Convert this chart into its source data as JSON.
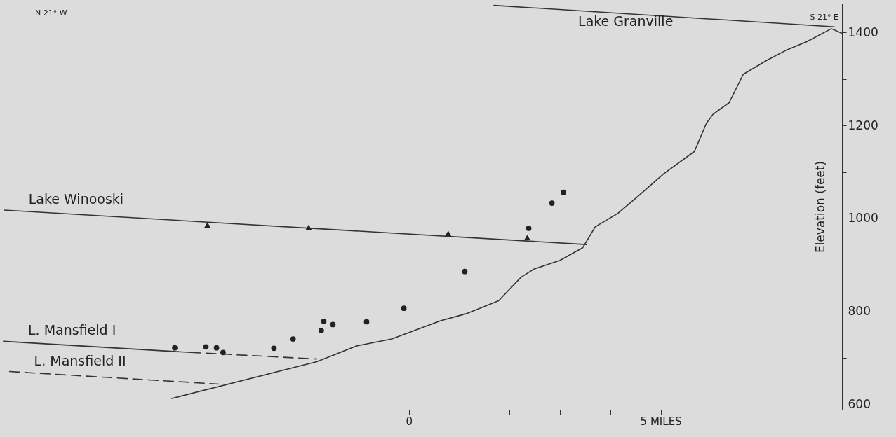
{
  "chart_data": {
    "type": "line",
    "ylabel": "Elevation (feet)",
    "xlim": [
      -8.05,
      8.6
    ],
    "ylim": [
      589,
      1462
    ],
    "xticks": [
      0,
      {
        "value": 1,
        "label": null
      },
      {
        "value": 2,
        "label": null
      },
      {
        "value": 3,
        "label": null
      },
      {
        "value": 4,
        "label": null
      },
      {
        "value": 5,
        "label": "5 MILES"
      }
    ],
    "yticks": [
      600,
      {
        "value": 700,
        "label": null
      },
      800,
      {
        "value": 900,
        "label": null
      },
      1000,
      {
        "value": 1100,
        "label": null
      },
      1200,
      {
        "value": 1300,
        "label": null
      },
      1400
    ],
    "annotations": [
      "N 21° W",
      "S 21° E"
    ],
    "legend": false,
    "series": [
      {
        "name": "Lake Granville",
        "color": "#333333",
        "line_style": "solid",
        "x": [
          1.69,
          8.45
        ],
        "values": [
          1458,
          1412
        ]
      },
      {
        "name": "Lake Winooski",
        "color": "#333333",
        "line_style": "solid",
        "x": [
          -8.04,
          3.52
        ],
        "values": [
          1018,
          944
        ]
      },
      {
        "name": "L. Mansfield I",
        "color": "#333333",
        "line_style": "solid",
        "x": [
          -8.05,
          -4.33
        ],
        "values": [
          736,
          712
        ]
      },
      {
        "color": "#333333",
        "line_style": "dashed",
        "x": [
          -4.33,
          -1.83
        ],
        "values": [
          712,
          698
        ]
      },
      {
        "name": "L. Mansfield II",
        "color": "#333333",
        "line_style": "dashed",
        "x": [
          -7.93,
          -3.78
        ],
        "values": [
          671,
          644
        ]
      },
      {
        "color": "#333333",
        "line_style": "solid",
        "x": [
          -4.71,
          -1.83,
          -1.04,
          -0.34,
          0.63,
          1.13,
          1.78,
          2.23,
          2.48,
          3.0,
          3.45,
          3.7,
          4.15,
          4.52,
          5.06,
          5.67,
          5.91,
          6.04,
          6.36,
          6.64,
          7.11,
          7.48,
          7.9,
          8.39,
          8.6
        ],
        "values": [
          613,
          692,
          726,
          741,
          780,
          795,
          823,
          874,
          891,
          910,
          937,
          982,
          1011,
          1045,
          1096,
          1144,
          1205,
          1224,
          1249,
          1310,
          1340,
          1361,
          1380,
          1408,
          1398
        ]
      },
      {
        "type": "scatter",
        "marker": "triangle",
        "color": "#222222",
        "x": [
          -4.0,
          -1.99,
          0.78,
          2.35
        ],
        "values": [
          986,
          981,
          968,
          959
        ]
      },
      {
        "type": "scatter",
        "marker": "circle",
        "color": "#222222",
        "x": [
          -4.65,
          -4.03,
          -3.82,
          -3.69,
          -2.68,
          -2.3,
          -1.74,
          -1.69,
          -1.51,
          -0.84,
          -0.1,
          1.11,
          2.38,
          2.84,
          3.07
        ],
        "values": [
          722,
          724,
          722,
          712,
          721,
          741,
          759,
          779,
          772,
          778,
          807,
          886,
          979,
          1033,
          1056
        ]
      }
    ]
  }
}
